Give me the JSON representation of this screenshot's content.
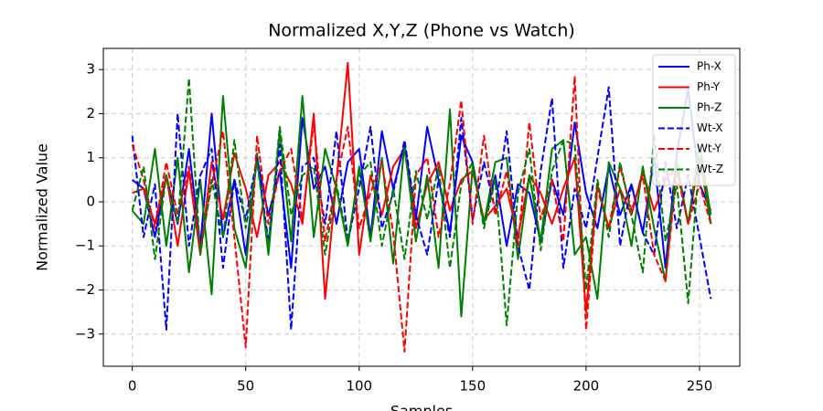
{
  "chart_data": {
    "type": "line",
    "title": "Normalized X,Y,Z (Phone vs Watch)",
    "xlabel": "Samples",
    "ylabel": "Normalized Value",
    "x": [
      0,
      5,
      10,
      15,
      20,
      25,
      30,
      35,
      40,
      45,
      50,
      55,
      60,
      65,
      70,
      75,
      80,
      85,
      90,
      95,
      100,
      105,
      110,
      115,
      120,
      125,
      130,
      135,
      140,
      145,
      150,
      155,
      160,
      165,
      170,
      175,
      180,
      185,
      190,
      195,
      200,
      205,
      210,
      215,
      220,
      225,
      230,
      235,
      240,
      245,
      250,
      255
    ],
    "series": [
      {
        "name": "Ph-X",
        "color": "#0000ff",
        "linestyle": "solid",
        "values": [
          0.5,
          0.3,
          -0.8,
          0.6,
          -0.5,
          1.2,
          -1.0,
          2.0,
          -0.8,
          0.5,
          -1.2,
          1.0,
          -0.3,
          0.7,
          -1.5,
          1.9,
          0.3,
          0.8,
          -0.5,
          0.9,
          1.2,
          -0.8,
          1.6,
          0.3,
          1.3,
          -0.4,
          1.7,
          0.5,
          -0.7,
          1.5,
          0.9,
          -0.5,
          0.6,
          -1.0,
          0.4,
          0.2,
          -0.9,
          0.5,
          -0.3,
          1.8,
          0.2,
          -0.6,
          0.8,
          -0.3,
          0.4,
          -0.7,
          1.0,
          -1.5,
          1.1,
          2.55,
          0.4,
          -0.2
        ]
      },
      {
        "name": "Ph-Y",
        "color": "#ff0000",
        "linestyle": "solid",
        "values": [
          0.2,
          0.3,
          -0.5,
          0.6,
          -1.0,
          0.7,
          -1.2,
          0.9,
          -0.4,
          1.1,
          0.3,
          -0.8,
          0.6,
          0.9,
          0.4,
          -0.5,
          2.0,
          -2.2,
          0.5,
          3.15,
          -1.2,
          0.6,
          -0.3,
          0.8,
          1.2,
          -0.6,
          0.4,
          0.9,
          -0.2,
          0.5,
          0.7,
          -0.4,
          -0.1,
          0.3,
          -0.8,
          0.6,
          0.2,
          -0.5,
          0.3,
          1.0,
          -2.5,
          0.4,
          -0.6,
          0.3,
          -0.3,
          0.7,
          -0.2,
          0.5,
          0.8,
          -0.5,
          1.0,
          -0.5
        ]
      },
      {
        "name": "Ph-Z",
        "color": "#008000",
        "linestyle": "solid",
        "values": [
          -0.2,
          -0.5,
          1.2,
          -1.0,
          1.0,
          -1.6,
          0.5,
          -2.1,
          2.4,
          -0.6,
          -1.5,
          1.1,
          -1.2,
          1.6,
          -0.9,
          2.4,
          -0.8,
          1.2,
          0.3,
          -1.0,
          0.8,
          -0.9,
          1.0,
          -1.4,
          1.3,
          -0.9,
          0.6,
          -1.5,
          2.1,
          -2.6,
          0.8,
          -0.5,
          0.9,
          1.0,
          -1.3,
          0.6,
          -0.9,
          1.2,
          1.4,
          -1.2,
          -0.8,
          -2.2,
          0.9,
          0.3,
          -1.0,
          0.8,
          -0.6,
          -1.8,
          0.9,
          -0.5,
          1.3,
          -0.3
        ]
      },
      {
        "name": "Wt-X",
        "color": "#0000ff",
        "linestyle": "dashed",
        "values": [
          1.5,
          -0.8,
          0.4,
          -2.9,
          2.0,
          -1.0,
          0.6,
          1.2,
          -1.5,
          0.5,
          -0.4,
          1.0,
          -0.9,
          1.3,
          -2.9,
          0.8,
          1.0,
          -0.5,
          1.6,
          -0.9,
          0.3,
          1.7,
          -0.6,
          0.2,
          1.4,
          -0.3,
          -1.2,
          0.5,
          -0.8,
          1.9,
          -0.4,
          0.9,
          -0.2,
          1.6,
          -1.0,
          -2.0,
          0.7,
          2.35,
          -1.5,
          0.3,
          -0.6,
          1.0,
          2.6,
          -1.0,
          0.4,
          -0.7,
          -1.2,
          0.9,
          -0.6,
          0.6,
          -0.8,
          -2.2
        ]
      },
      {
        "name": "Wt-Y",
        "color": "#ff0000",
        "linestyle": "dashed",
        "values": [
          1.3,
          0.5,
          -0.6,
          0.9,
          -0.3,
          0.8,
          -1.1,
          0.4,
          1.6,
          -0.8,
          -3.3,
          1.5,
          -0.5,
          0.7,
          1.2,
          -0.4,
          1.8,
          -0.9,
          0.5,
          1.7,
          -0.6,
          0.2,
          0.9,
          -0.7,
          -3.4,
          0.6,
          1.0,
          -0.8,
          0.4,
          2.3,
          -0.5,
          1.5,
          -0.3,
          0.7,
          -1.0,
          1.8,
          -0.4,
          0.5,
          -0.9,
          2.85,
          -2.9,
          0.3,
          -0.6,
          0.8,
          -0.2,
          0.6,
          -1.2,
          -1.8,
          0.7,
          -0.5,
          0.4,
          -0.5
        ]
      },
      {
        "name": "Wt-Z",
        "color": "#008000",
        "linestyle": "dashed",
        "values": [
          -0.2,
          0.8,
          -1.3,
          0.6,
          -0.5,
          2.8,
          -1.2,
          0.5,
          -0.8,
          1.4,
          -0.6,
          0.9,
          -1.0,
          1.7,
          -0.3,
          0.6,
          0.8,
          -1.2,
          0.4,
          -0.9,
          0.6,
          0.9,
          -1.0,
          0.3,
          -1.3,
          0.7,
          -0.4,
          0.8,
          -1.5,
          0.4,
          0.9,
          -0.6,
          0.5,
          -2.8,
          0.2,
          1.2,
          -1.1,
          0.7,
          1.4,
          1.3,
          -2.0,
          0.5,
          -0.8,
          0.9,
          -0.3,
          -1.6,
          1.5,
          -0.9,
          0.4,
          -2.3,
          1.0,
          -0.5
        ]
      }
    ],
    "xlim": [
      -12.75,
      267.75
    ],
    "ylim": [
      -3.73,
      3.48
    ],
    "xticks": [
      0,
      50,
      100,
      150,
      200,
      250
    ],
    "yticks": [
      {
        "value": -3,
        "label": "−3"
      },
      {
        "value": -2,
        "label": "−2"
      },
      {
        "value": -1,
        "label": "−1"
      },
      0,
      1,
      2,
      3
    ],
    "grid": true,
    "legend": "upper right"
  }
}
